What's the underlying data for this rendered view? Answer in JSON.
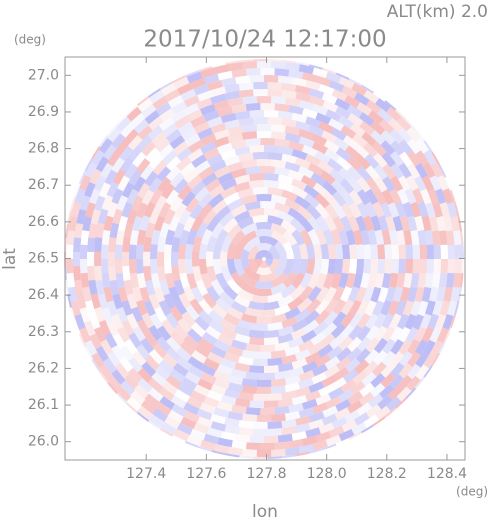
{
  "chart_data": {
    "type": "ppi",
    "title": "2017/10/24 12:17:00",
    "subtitle": "ALT(km) 2.0",
    "x_label": "lon",
    "y_label": "lat",
    "x_unit": "(deg)",
    "y_unit": "(deg)",
    "xlim": [
      127.13,
      128.46
    ],
    "ylim": [
      25.95,
      27.05
    ],
    "xticks": [
      127.4,
      127.6,
      127.8,
      {
        "value": 128,
        "label": "128.0"
      },
      128.2,
      128.4
    ],
    "yticks": [
      {
        "value": 26,
        "label": "26.0"
      },
      26.1,
      26.2,
      26.3,
      26.4,
      26.5,
      26.6,
      26.7,
      26.8,
      26.9,
      {
        "value": 27,
        "label": "27.0"
      }
    ]
  }
}
